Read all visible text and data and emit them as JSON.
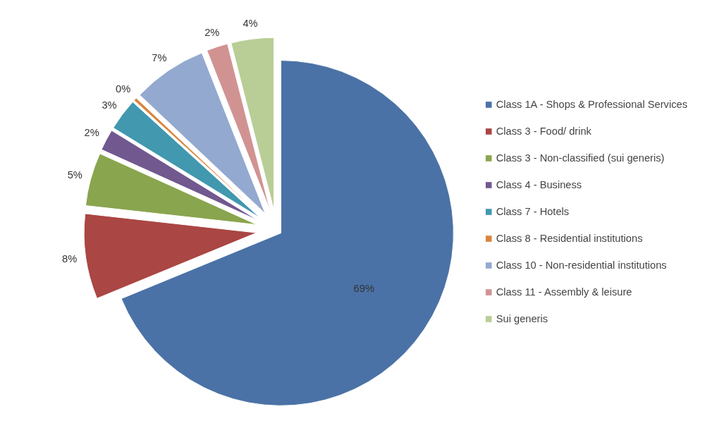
{
  "chart_data": {
    "type": "pie",
    "categories": [
      "Class 1A - Shops & Professional Services",
      "Class 3 - Food/ drink",
      "Class 3 - Non-classified (sui generis)",
      "Class 4 - Business",
      "Class 7 - Hotels",
      "Class 8 - Residential institutions",
      "Class 10 - Non-residential institutions",
      "Class 11 - Assembly & leisure",
      "Sui generis"
    ],
    "values": [
      69,
      8,
      5,
      2,
      3,
      0.3,
      7,
      2,
      4
    ],
    "value_labels": [
      "69%",
      "8%",
      "5%",
      "2%",
      "3%",
      "0%",
      "7%",
      "2%",
      "4%"
    ],
    "colors": [
      "#4a72a6",
      "#aa4643",
      "#89a54e",
      "#71588f",
      "#4198af",
      "#db843d",
      "#93a9cf",
      "#d19392",
      "#b9cd96"
    ],
    "legend": "right"
  }
}
